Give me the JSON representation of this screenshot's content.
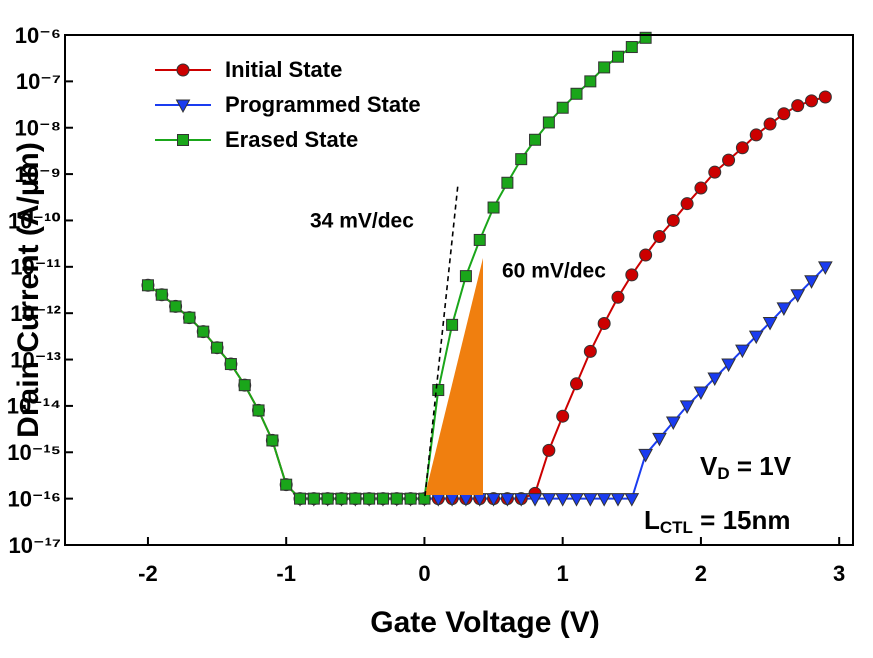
{
  "chart_data": {
    "type": "line",
    "xlabel": "Gate Voltage (V)",
    "ylabel": "Drain Current (A/µm)",
    "log_y": true,
    "legend": "upper left",
    "xlim": [
      -2.6,
      3.1
    ],
    "xticks": [
      -2,
      -1,
      0,
      1,
      2,
      3
    ],
    "ylim": [
      1e-17,
      1e-06
    ],
    "yticks": [
      {
        "value": 1e-17,
        "label": "10⁻¹⁷"
      },
      {
        "value": 1e-16,
        "label": "10⁻¹⁶"
      },
      {
        "value": 1e-15,
        "label": "10⁻¹⁵"
      },
      {
        "value": 1e-14,
        "label": "10⁻¹⁴"
      },
      {
        "value": 1e-13,
        "label": "10⁻¹³"
      },
      {
        "value": 1e-12,
        "label": "10⁻¹²"
      },
      {
        "value": 1e-11,
        "label": "10⁻¹¹"
      },
      {
        "value": 1e-10,
        "label": "10⁻¹⁰"
      },
      {
        "value": 1e-09,
        "label": "10⁻⁹"
      },
      {
        "value": 1e-08,
        "label": "10⁻⁸"
      },
      {
        "value": 1e-07,
        "label": "10⁻⁷"
      },
      {
        "value": 1e-06,
        "label": "10⁻⁶"
      }
    ],
    "x": [
      -2.0,
      -1.9,
      -1.8,
      -1.7,
      -1.6,
      -1.5,
      -1.4,
      -1.3,
      -1.2,
      -1.1,
      -1.0,
      -0.9,
      -0.8,
      -0.7,
      -0.6,
      -0.5,
      -0.4,
      -0.3,
      -0.2,
      -0.1,
      0.0,
      0.1,
      0.2,
      0.3,
      0.4,
      0.5,
      0.6,
      0.7,
      0.8,
      0.9,
      1.0,
      1.1,
      1.2,
      1.3,
      1.4,
      1.5,
      1.6,
      1.7,
      1.8,
      1.9,
      2.0,
      2.1,
      2.2,
      2.3,
      2.4,
      2.5,
      2.6,
      2.7,
      2.8,
      2.9
    ],
    "series": [
      {
        "name": "Initial State",
        "color": "#cc0000",
        "marker": "circle",
        "values": [
          4e-12,
          2.5e-12,
          1.4e-12,
          8e-13,
          4e-13,
          1.8e-13,
          8e-14,
          2.8e-14,
          8e-15,
          1.8e-15,
          2e-16,
          1e-16,
          1e-16,
          1e-16,
          1e-16,
          1e-16,
          1e-16,
          1e-16,
          1e-16,
          1e-16,
          1e-16,
          1e-16,
          1e-16,
          1e-16,
          1e-16,
          1e-16,
          1e-16,
          1e-16,
          1.3e-16,
          1.1e-15,
          6e-15,
          3e-14,
          1.5e-13,
          6e-13,
          2.2e-12,
          6.7e-12,
          1.8e-11,
          4.5e-11,
          1e-10,
          2.3e-10,
          5e-10,
          1.1e-09,
          2e-09,
          3.7e-09,
          7e-09,
          1.2e-08,
          2e-08,
          3e-08,
          3.8e-08,
          4.6e-08
        ]
      },
      {
        "name": "Programmed State",
        "color": "#1a3cf0",
        "marker": "triangle-down",
        "values": [
          null,
          null,
          null,
          null,
          null,
          null,
          null,
          null,
          null,
          null,
          null,
          1e-16,
          1e-16,
          1e-16,
          1e-16,
          1e-16,
          1e-16,
          1e-16,
          1e-16,
          1e-16,
          1e-16,
          1e-16,
          1e-16,
          1e-16,
          1e-16,
          1e-16,
          1e-16,
          1e-16,
          1e-16,
          1e-16,
          1e-16,
          1e-16,
          1e-16,
          1e-16,
          1e-16,
          1e-16,
          9e-16,
          2e-15,
          4.5e-15,
          1e-14,
          2e-14,
          4e-14,
          8e-14,
          1.6e-13,
          3.2e-13,
          6.3e-13,
          1.3e-12,
          2.5e-12,
          5e-12,
          1e-11
        ]
      },
      {
        "name": "Erased State",
        "color": "#1aa61a",
        "marker": "square",
        "values": [
          4e-12,
          2.5e-12,
          1.4e-12,
          8e-13,
          4e-13,
          1.8e-13,
          8e-14,
          2.8e-14,
          8e-15,
          1.8e-15,
          2e-16,
          1e-16,
          1e-16,
          1e-16,
          1e-16,
          1e-16,
          1e-16,
          1e-16,
          1e-16,
          1e-16,
          1e-16,
          2.2e-14,
          5.6e-13,
          6.3e-12,
          3.8e-11,
          1.9e-10,
          6.5e-10,
          2.1e-09,
          5.5e-09,
          1.3e-08,
          2.7e-08,
          5.4e-08,
          1e-07,
          2e-07,
          3.4e-07,
          5.5e-07,
          8.7e-07,
          null,
          null,
          null,
          null,
          null,
          null,
          null,
          null,
          null,
          null,
          null,
          null,
          null
        ]
      }
    ],
    "annotations": {
      "slope_steep": "34 mV/dec",
      "slope_ideal": "60 mV/dec",
      "drain_bias": {
        "symbol": "V",
        "subscript": "D",
        "text": " = 1V"
      },
      "ctl_length": {
        "symbol": "L",
        "subscript": "CTL",
        "text": " = 15nm"
      }
    }
  }
}
